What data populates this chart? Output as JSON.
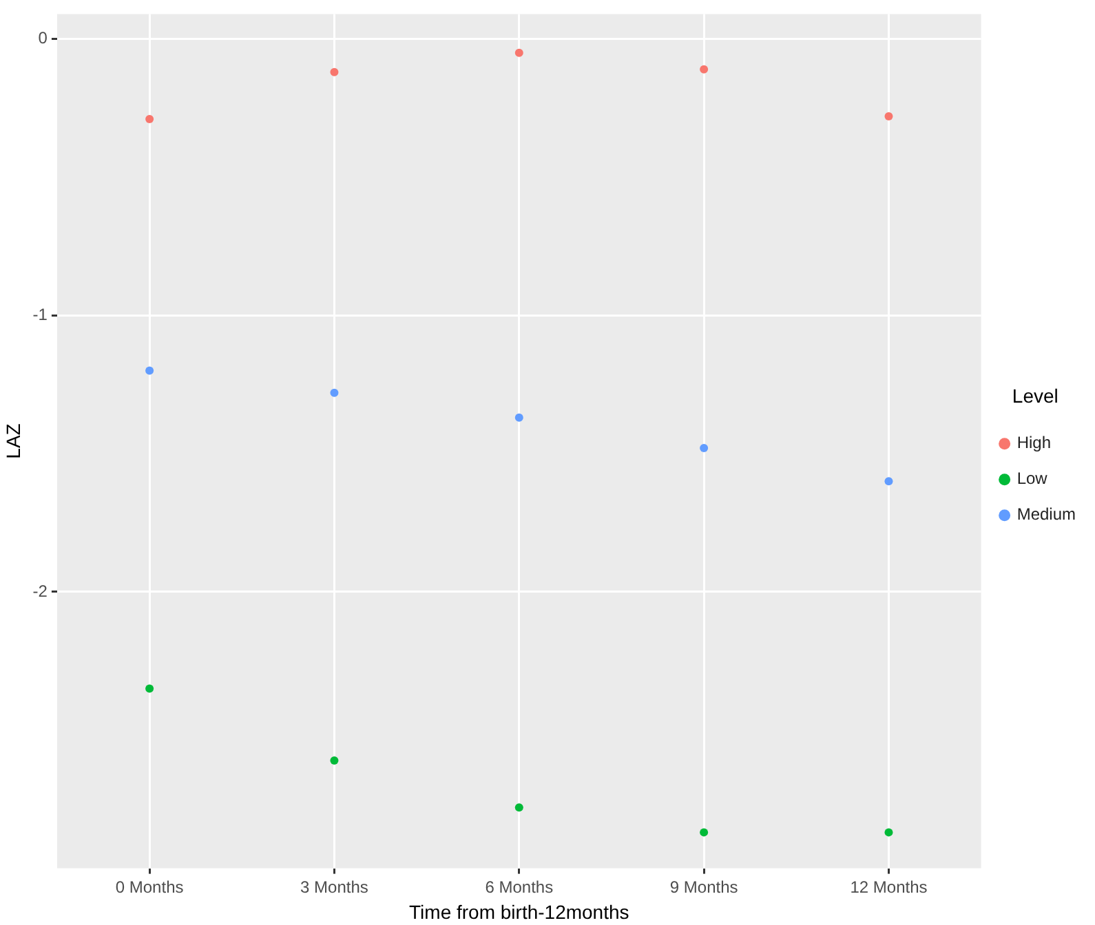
{
  "chart_data": {
    "type": "scatter",
    "xlabel": "Time from birth-12months",
    "ylabel": "LAZ",
    "legend_title": "Level",
    "categories": [
      "0 Months",
      "3 Months",
      "6 Months",
      "9 Months",
      "12 Months"
    ],
    "series": [
      {
        "name": "High",
        "color": "#f8766d",
        "values": [
          -0.29,
          -0.12,
          -0.05,
          -0.11,
          -0.28
        ]
      },
      {
        "name": "Low",
        "color": "#00ba38",
        "values": [
          -2.35,
          -2.61,
          -2.78,
          -2.87,
          -2.87
        ]
      },
      {
        "name": "Medium",
        "color": "#619cff",
        "values": [
          -1.2,
          -1.28,
          -1.37,
          -1.48,
          -1.6
        ]
      }
    ],
    "ylim": [
      -3.0,
      0.09
    ],
    "yticks": [
      0,
      -1,
      -2
    ],
    "grid": true,
    "legend": "right",
    "marker": "circle"
  }
}
